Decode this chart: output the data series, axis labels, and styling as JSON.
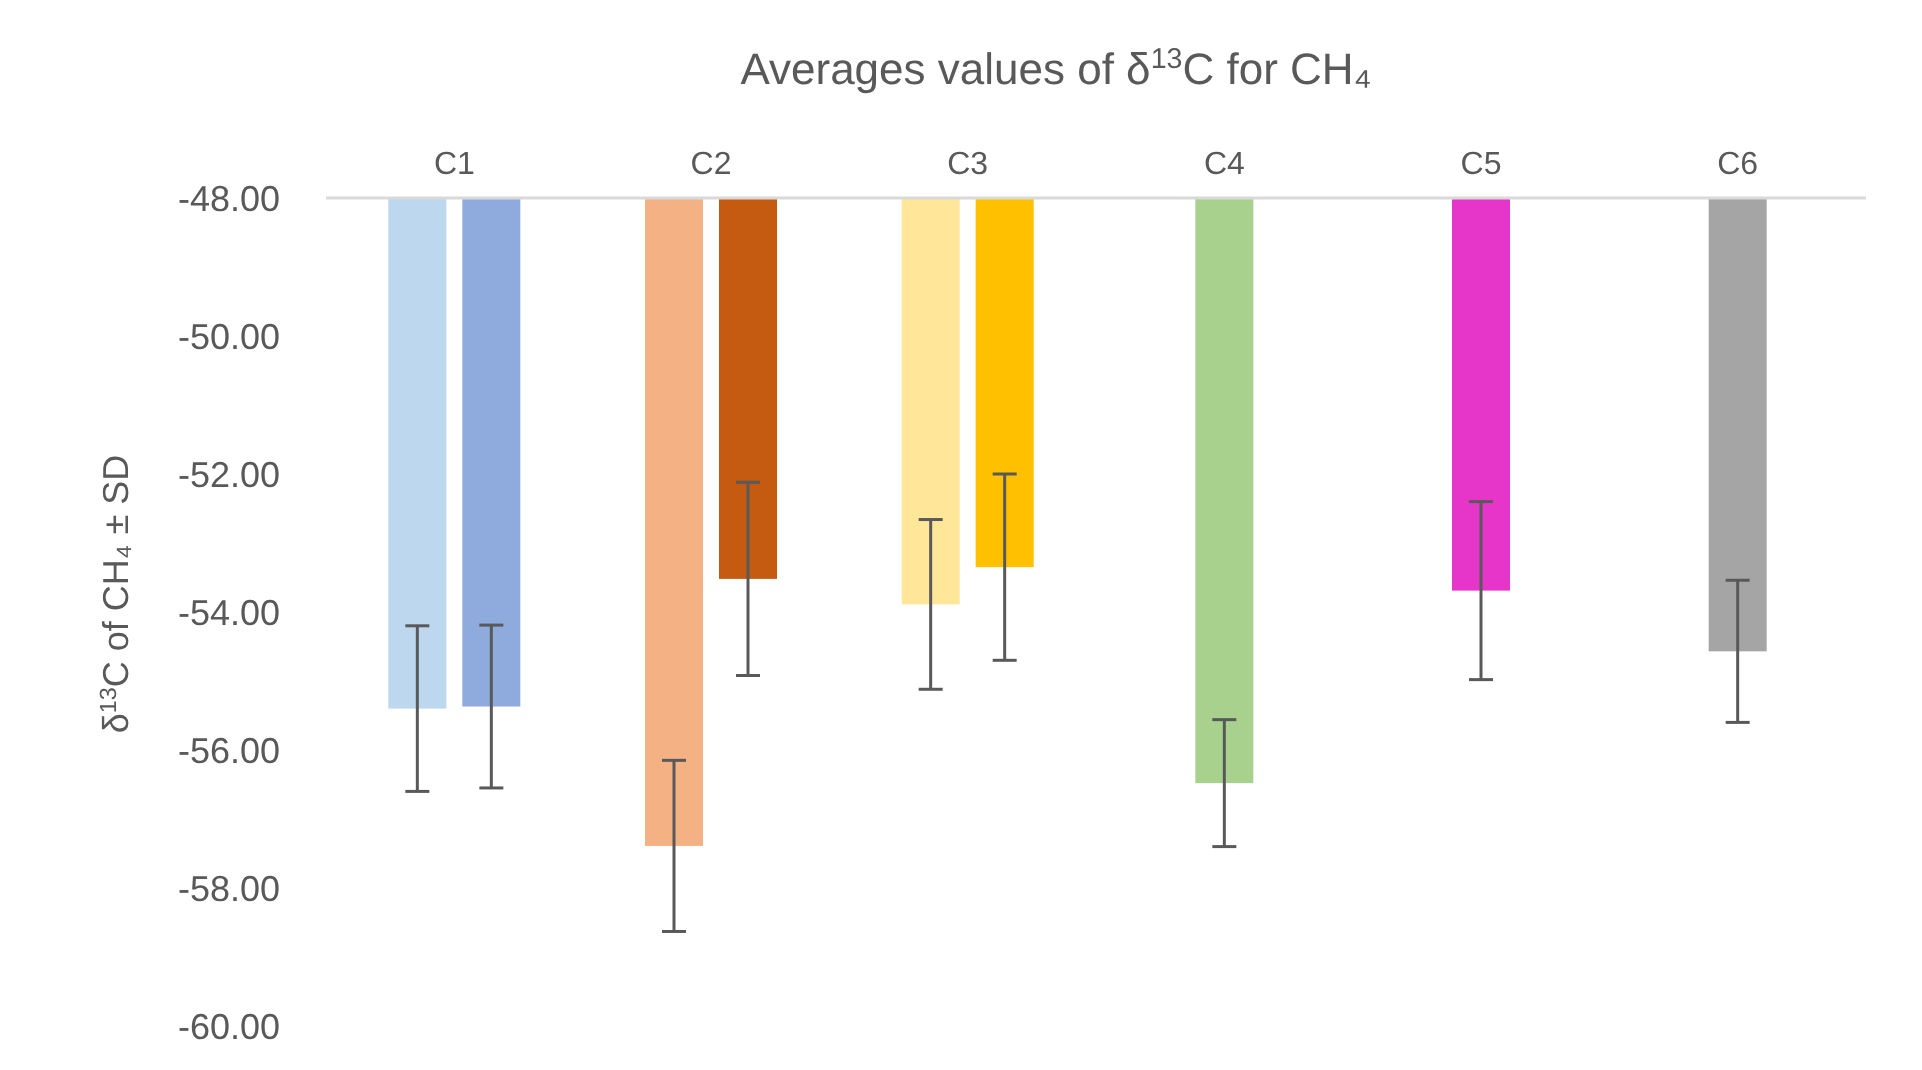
{
  "chart_data": {
    "type": "bar",
    "title": "Averages values of δ$^{13}$C for CH₄",
    "ylabel": "δ$^{13}$C of CH₄  ± SD",
    "categories": [
      "C1",
      "C2",
      "C3",
      "C4",
      "C5",
      "C6"
    ],
    "series": [
      {
        "colors": [
          "#bdd7ee",
          "#f4b183",
          "#ffe699",
          "#a9d18e",
          "#e536c9",
          "#a5a5a5"
        ],
        "values": [
          -55.4,
          -57.39,
          -53.89,
          -56.48,
          -53.69,
          -54.57
        ],
        "errors": [
          1.2,
          1.24,
          1.23,
          0.92,
          1.29,
          1.03
        ]
      },
      {
        "colors": [
          "#8faadc",
          "#c55a11",
          "#ffc000",
          null,
          null,
          null
        ],
        "values": [
          -55.37,
          -53.52,
          -53.35,
          null,
          null,
          null
        ],
        "errors": [
          1.18,
          1.4,
          1.35,
          null,
          null,
          null
        ]
      }
    ],
    "ylim": [
      -60,
      -48
    ],
    "yticks": [
      {
        "value": -60,
        "label": "-60.00"
      },
      {
        "value": -58,
        "label": "-58.00"
      },
      {
        "value": -56,
        "label": "-56.00"
      },
      {
        "value": -54,
        "label": "-54.00"
      },
      {
        "value": -52,
        "label": "-52.00"
      },
      {
        "value": -50,
        "label": "-50.00"
      },
      {
        "value": -48,
        "label": "-48.00"
      }
    ],
    "grid": false
  }
}
